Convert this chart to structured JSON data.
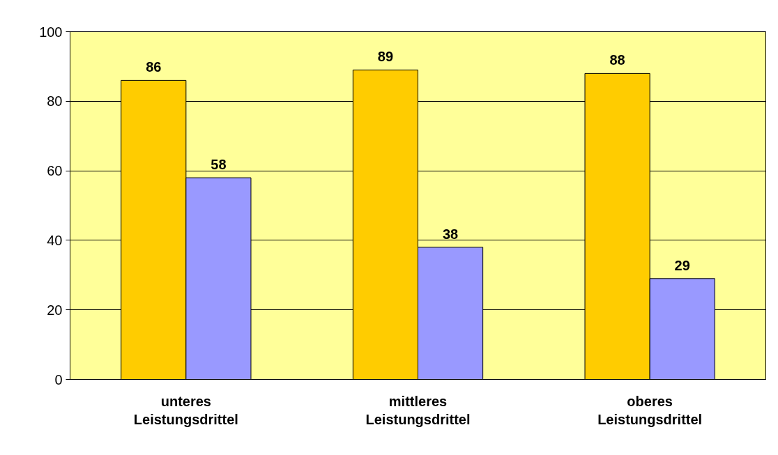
{
  "chart_data": {
    "type": "bar",
    "categories": [
      "unteres Leistungsdrittel",
      "mittleres Leistungsdrittel",
      "oberes Leistungsdrittel"
    ],
    "series": [
      {
        "color": "#ffcc00",
        "values": [
          86,
          89,
          88
        ]
      },
      {
        "color": "#9999ff",
        "values": [
          58,
          38,
          29
        ]
      }
    ],
    "ylim": [
      0,
      100
    ],
    "yticks": [
      0,
      20,
      40,
      60,
      80,
      100
    ],
    "grid": "y",
    "data_labels": true
  }
}
